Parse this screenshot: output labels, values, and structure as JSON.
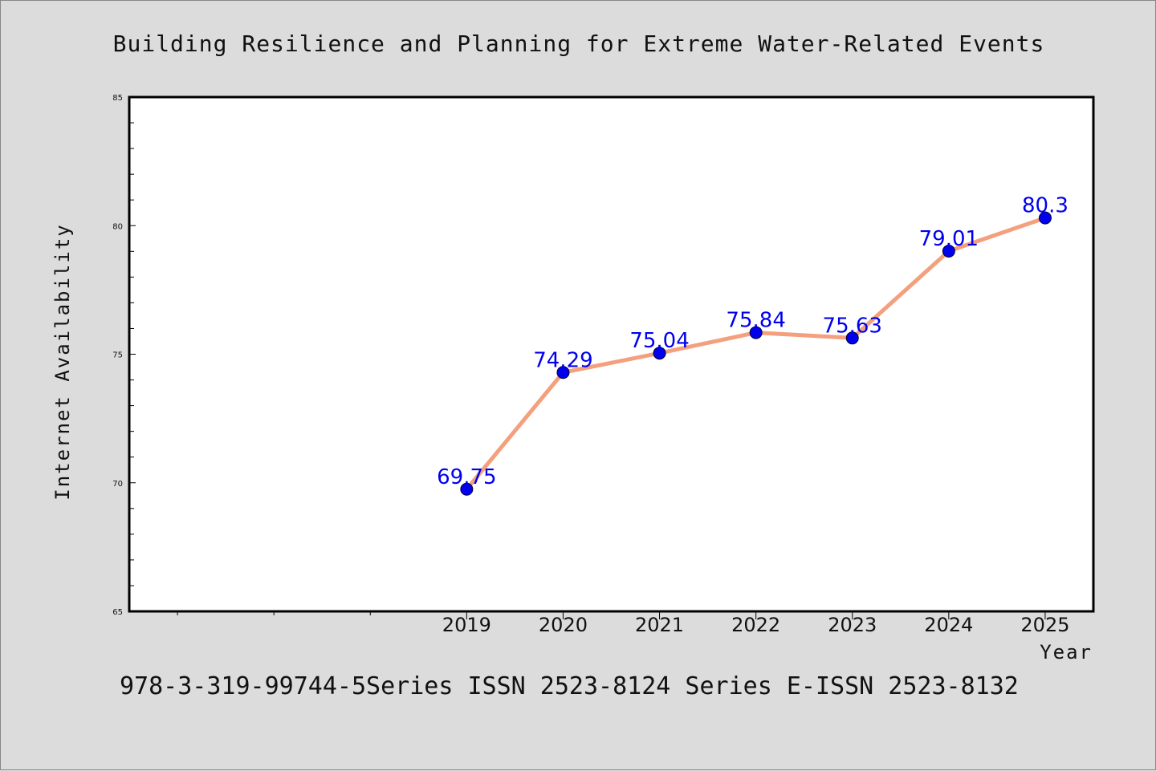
{
  "chart_data": {
    "type": "line",
    "title": "Building Resilience and Planning for Extreme Water-Related Events",
    "xlabel": "Year",
    "ylabel": "Internet Availability",
    "footer": "978-3-319-99744-5Series ISSN 2523-8124 Series E-ISSN 2523-8132",
    "categories": [
      "2019",
      "2020",
      "2021",
      "2022",
      "2023",
      "2024",
      "2025"
    ],
    "series": [
      {
        "values": [
          69.75,
          74.29,
          75.04,
          75.84,
          75.63,
          79.01,
          80.3
        ],
        "labels": [
          "69.75",
          "74.29",
          "75.04",
          "75.84",
          "75.63",
          "79.01",
          "80.3"
        ]
      }
    ],
    "ylim": [
      65,
      85
    ],
    "yticks": [
      "65",
      "70",
      "75",
      "80",
      "85"
    ],
    "grid": false,
    "legend": "none",
    "colors": {
      "line": "#f4a07e",
      "marker": "#0000ee",
      "data_label": "#0000ee",
      "background": "#dcdcdc",
      "plot_background": "#ffffff"
    }
  }
}
